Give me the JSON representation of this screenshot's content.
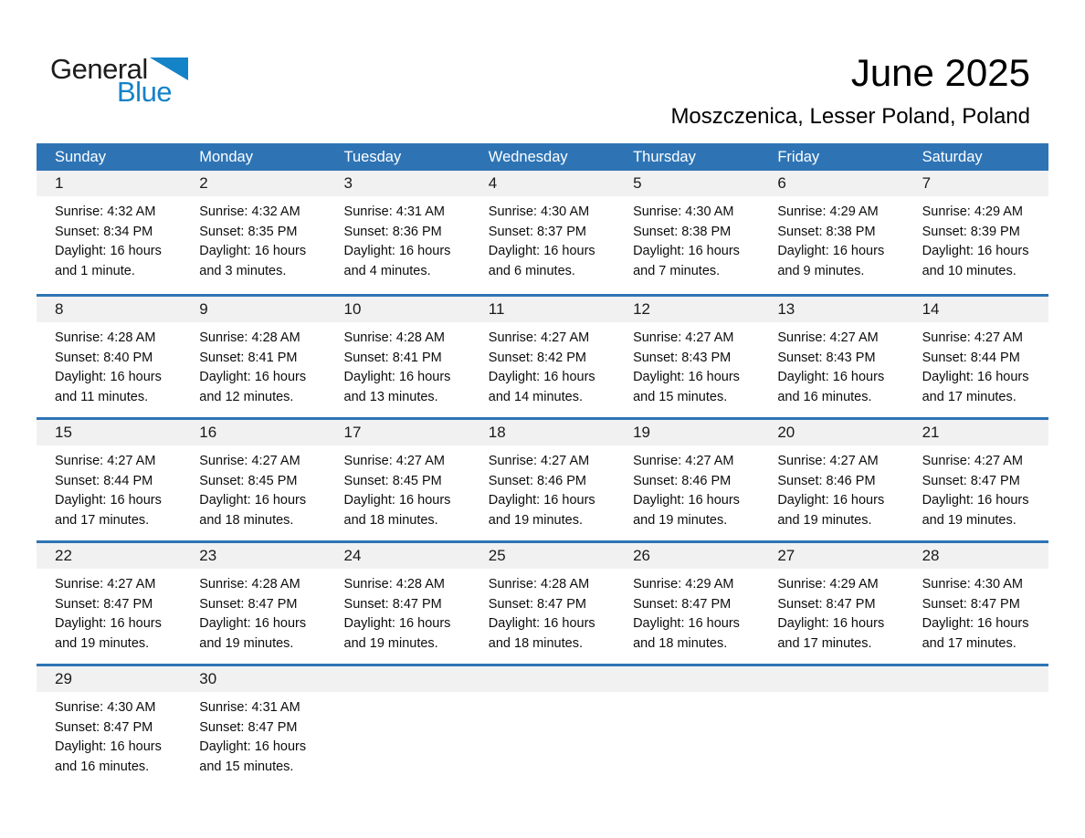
{
  "logo": {
    "word1": "General",
    "word2": "Blue",
    "triangle_icon": "blue-right-triangle"
  },
  "header": {
    "title": "June 2025",
    "subtitle": "Moszczenica, Lesser Poland, Poland"
  },
  "colors": {
    "header_bar_blue": "#2e74b5",
    "week_separator_blue": "#2e74b5",
    "day_band_gray": "#f1f1f2",
    "logo_blue": "#1583c7",
    "text_black": "#000000"
  },
  "calendar": {
    "day_headers": [
      "Sunday",
      "Monday",
      "Tuesday",
      "Wednesday",
      "Thursday",
      "Friday",
      "Saturday"
    ],
    "weeks": [
      [
        {
          "day": "1",
          "sunrise": "Sunrise: 4:32 AM",
          "sunset": "Sunset: 8:34 PM",
          "daylight1": "Daylight: 16 hours",
          "daylight2": "and 1 minute."
        },
        {
          "day": "2",
          "sunrise": "Sunrise: 4:32 AM",
          "sunset": "Sunset: 8:35 PM",
          "daylight1": "Daylight: 16 hours",
          "daylight2": "and 3 minutes."
        },
        {
          "day": "3",
          "sunrise": "Sunrise: 4:31 AM",
          "sunset": "Sunset: 8:36 PM",
          "daylight1": "Daylight: 16 hours",
          "daylight2": "and 4 minutes."
        },
        {
          "day": "4",
          "sunrise": "Sunrise: 4:30 AM",
          "sunset": "Sunset: 8:37 PM",
          "daylight1": "Daylight: 16 hours",
          "daylight2": "and 6 minutes."
        },
        {
          "day": "5",
          "sunrise": "Sunrise: 4:30 AM",
          "sunset": "Sunset: 8:38 PM",
          "daylight1": "Daylight: 16 hours",
          "daylight2": "and 7 minutes."
        },
        {
          "day": "6",
          "sunrise": "Sunrise: 4:29 AM",
          "sunset": "Sunset: 8:38 PM",
          "daylight1": "Daylight: 16 hours",
          "daylight2": "and 9 minutes."
        },
        {
          "day": "7",
          "sunrise": "Sunrise: 4:29 AM",
          "sunset": "Sunset: 8:39 PM",
          "daylight1": "Daylight: 16 hours",
          "daylight2": "and 10 minutes."
        }
      ],
      [
        {
          "day": "8",
          "sunrise": "Sunrise: 4:28 AM",
          "sunset": "Sunset: 8:40 PM",
          "daylight1": "Daylight: 16 hours",
          "daylight2": "and 11 minutes."
        },
        {
          "day": "9",
          "sunrise": "Sunrise: 4:28 AM",
          "sunset": "Sunset: 8:41 PM",
          "daylight1": "Daylight: 16 hours",
          "daylight2": "and 12 minutes."
        },
        {
          "day": "10",
          "sunrise": "Sunrise: 4:28 AM",
          "sunset": "Sunset: 8:41 PM",
          "daylight1": "Daylight: 16 hours",
          "daylight2": "and 13 minutes."
        },
        {
          "day": "11",
          "sunrise": "Sunrise: 4:27 AM",
          "sunset": "Sunset: 8:42 PM",
          "daylight1": "Daylight: 16 hours",
          "daylight2": "and 14 minutes."
        },
        {
          "day": "12",
          "sunrise": "Sunrise: 4:27 AM",
          "sunset": "Sunset: 8:43 PM",
          "daylight1": "Daylight: 16 hours",
          "daylight2": "and 15 minutes."
        },
        {
          "day": "13",
          "sunrise": "Sunrise: 4:27 AM",
          "sunset": "Sunset: 8:43 PM",
          "daylight1": "Daylight: 16 hours",
          "daylight2": "and 16 minutes."
        },
        {
          "day": "14",
          "sunrise": "Sunrise: 4:27 AM",
          "sunset": "Sunset: 8:44 PM",
          "daylight1": "Daylight: 16 hours",
          "daylight2": "and 17 minutes."
        }
      ],
      [
        {
          "day": "15",
          "sunrise": "Sunrise: 4:27 AM",
          "sunset": "Sunset: 8:44 PM",
          "daylight1": "Daylight: 16 hours",
          "daylight2": "and 17 minutes."
        },
        {
          "day": "16",
          "sunrise": "Sunrise: 4:27 AM",
          "sunset": "Sunset: 8:45 PM",
          "daylight1": "Daylight: 16 hours",
          "daylight2": "and 18 minutes."
        },
        {
          "day": "17",
          "sunrise": "Sunrise: 4:27 AM",
          "sunset": "Sunset: 8:45 PM",
          "daylight1": "Daylight: 16 hours",
          "daylight2": "and 18 minutes."
        },
        {
          "day": "18",
          "sunrise": "Sunrise: 4:27 AM",
          "sunset": "Sunset: 8:46 PM",
          "daylight1": "Daylight: 16 hours",
          "daylight2": "and 19 minutes."
        },
        {
          "day": "19",
          "sunrise": "Sunrise: 4:27 AM",
          "sunset": "Sunset: 8:46 PM",
          "daylight1": "Daylight: 16 hours",
          "daylight2": "and 19 minutes."
        },
        {
          "day": "20",
          "sunrise": "Sunrise: 4:27 AM",
          "sunset": "Sunset: 8:46 PM",
          "daylight1": "Daylight: 16 hours",
          "daylight2": "and 19 minutes."
        },
        {
          "day": "21",
          "sunrise": "Sunrise: 4:27 AM",
          "sunset": "Sunset: 8:47 PM",
          "daylight1": "Daylight: 16 hours",
          "daylight2": "and 19 minutes."
        }
      ],
      [
        {
          "day": "22",
          "sunrise": "Sunrise: 4:27 AM",
          "sunset": "Sunset: 8:47 PM",
          "daylight1": "Daylight: 16 hours",
          "daylight2": "and 19 minutes."
        },
        {
          "day": "23",
          "sunrise": "Sunrise: 4:28 AM",
          "sunset": "Sunset: 8:47 PM",
          "daylight1": "Daylight: 16 hours",
          "daylight2": "and 19 minutes."
        },
        {
          "day": "24",
          "sunrise": "Sunrise: 4:28 AM",
          "sunset": "Sunset: 8:47 PM",
          "daylight1": "Daylight: 16 hours",
          "daylight2": "and 19 minutes."
        },
        {
          "day": "25",
          "sunrise": "Sunrise: 4:28 AM",
          "sunset": "Sunset: 8:47 PM",
          "daylight1": "Daylight: 16 hours",
          "daylight2": "and 18 minutes."
        },
        {
          "day": "26",
          "sunrise": "Sunrise: 4:29 AM",
          "sunset": "Sunset: 8:47 PM",
          "daylight1": "Daylight: 16 hours",
          "daylight2": "and 18 minutes."
        },
        {
          "day": "27",
          "sunrise": "Sunrise: 4:29 AM",
          "sunset": "Sunset: 8:47 PM",
          "daylight1": "Daylight: 16 hours",
          "daylight2": "and 17 minutes."
        },
        {
          "day": "28",
          "sunrise": "Sunrise: 4:30 AM",
          "sunset": "Sunset: 8:47 PM",
          "daylight1": "Daylight: 16 hours",
          "daylight2": "and 17 minutes."
        }
      ],
      [
        {
          "day": "29",
          "sunrise": "Sunrise: 4:30 AM",
          "sunset": "Sunset: 8:47 PM",
          "daylight1": "Daylight: 16 hours",
          "daylight2": "and 16 minutes."
        },
        {
          "day": "30",
          "sunrise": "Sunrise: 4:31 AM",
          "sunset": "Sunset: 8:47 PM",
          "daylight1": "Daylight: 16 hours",
          "daylight2": "and 15 minutes."
        },
        null,
        null,
        null,
        null,
        null
      ]
    ]
  }
}
